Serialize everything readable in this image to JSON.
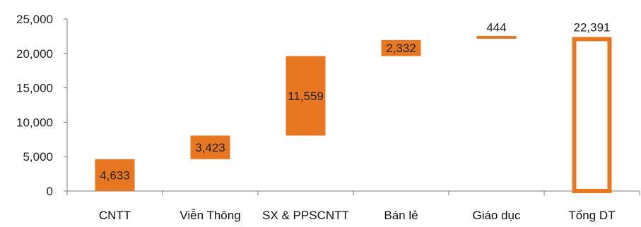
{
  "chart_data": {
    "type": "bar",
    "subtype": "waterfall",
    "title": "",
    "xlabel": "",
    "ylabel": "",
    "ylim": [
      0,
      25000
    ],
    "yticks": [
      0,
      5000,
      10000,
      15000,
      20000,
      25000
    ],
    "ytick_labels": [
      "0",
      "5,000",
      "10,000",
      "15,000",
      "20,000",
      "25,000"
    ],
    "grid": false,
    "legend": "none",
    "bar_color": "#E87722",
    "categories": [
      "CNTT",
      "Viễn Thông",
      "SX & PPSCNTT",
      "Bán lẻ",
      "Giáo dục",
      "Tổng DT"
    ],
    "values": [
      4633,
      3423,
      11559,
      2332,
      444,
      22391
    ],
    "data_labels": [
      "4,633",
      "3,423",
      "11,559",
      "2,332",
      "444",
      "22,391"
    ],
    "bases": [
      0,
      4633,
      8056,
      19615,
      21947,
      0
    ],
    "total_index": 5
  }
}
